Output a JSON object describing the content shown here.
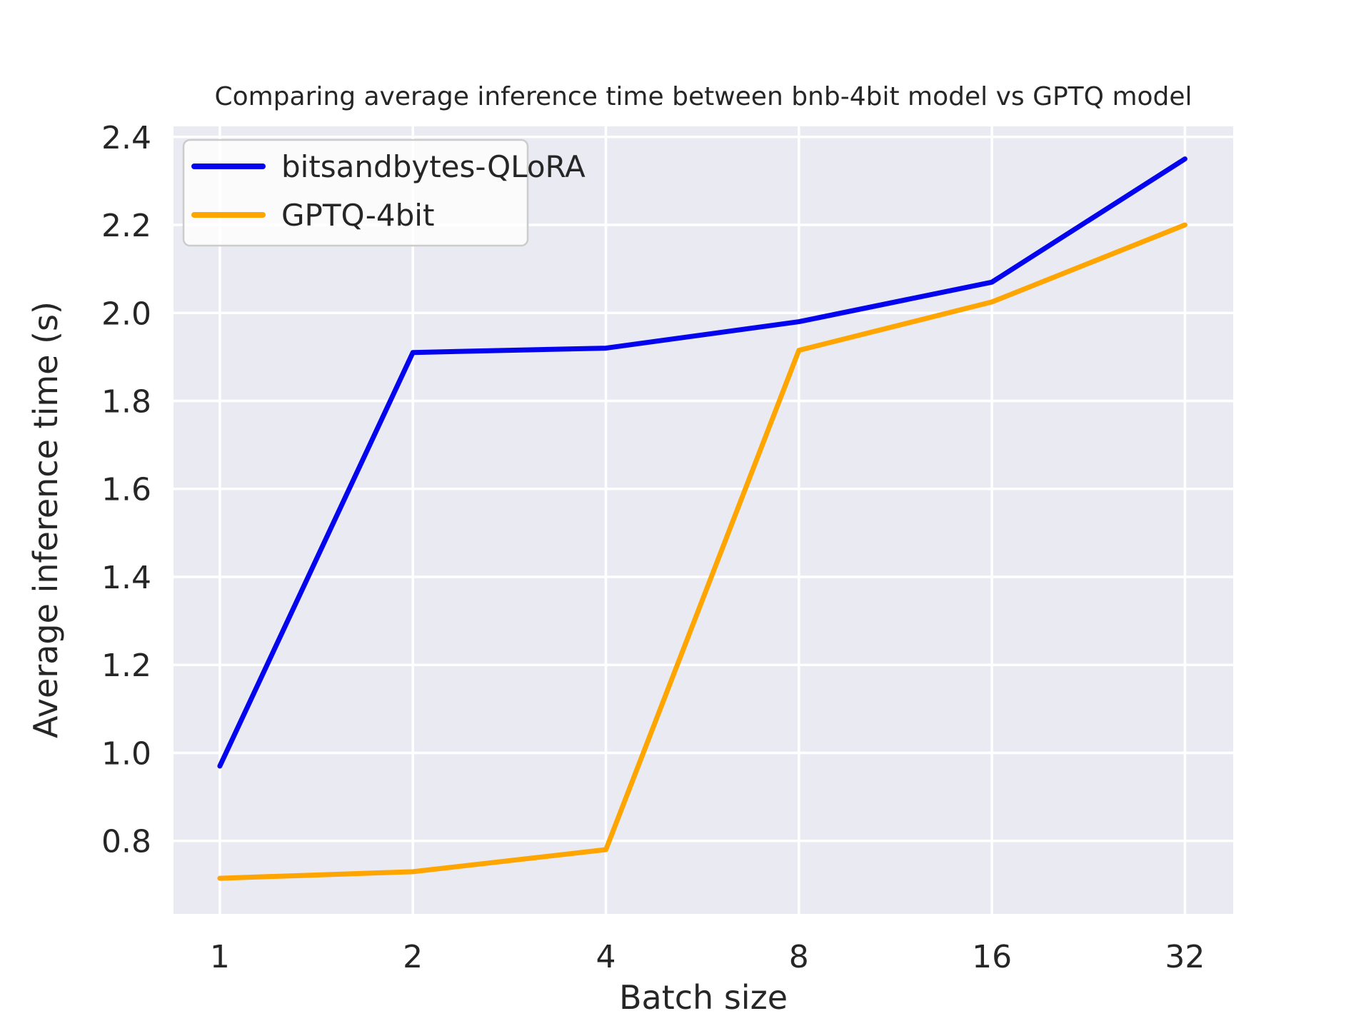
{
  "title": "Comparing average inference time between bnb-4bit model vs GPTQ model",
  "chart_data": {
    "type": "line",
    "title": "Comparing average inference time between bnb-4bit model vs GPTQ model",
    "xlabel": "Batch size",
    "ylabel": "Average inference time (s)",
    "x_scale": "log2",
    "grid": true,
    "legend_position": "upper left",
    "categories": [
      1,
      2,
      4,
      8,
      16,
      32
    ],
    "x_tick_labels": [
      "1",
      "2",
      "4",
      "8",
      "16",
      "32"
    ],
    "y_ticks": [
      0.8,
      1.0,
      1.2,
      1.4,
      1.6,
      1.8,
      2.0,
      2.2,
      2.4
    ],
    "ylim": [
      0.634,
      2.424
    ],
    "xlim_log2": [
      -0.24,
      5.25
    ],
    "series": [
      {
        "name": "bitsandbytes-QLoRA",
        "color": "#0404ee",
        "values": [
          0.97,
          1.91,
          1.92,
          1.98,
          2.07,
          2.35
        ]
      },
      {
        "name": "GPTQ-4bit",
        "color": "#ffa500",
        "values": [
          0.715,
          0.73,
          0.78,
          1.915,
          2.025,
          2.2
        ]
      }
    ],
    "style": {
      "plot_bg": "#eaeaf2",
      "grid_color": "#ffffff",
      "text_color": "#262626",
      "legend_bg": "rgba(255,255,255,0.78)",
      "legend_border": "#cccccc"
    }
  }
}
